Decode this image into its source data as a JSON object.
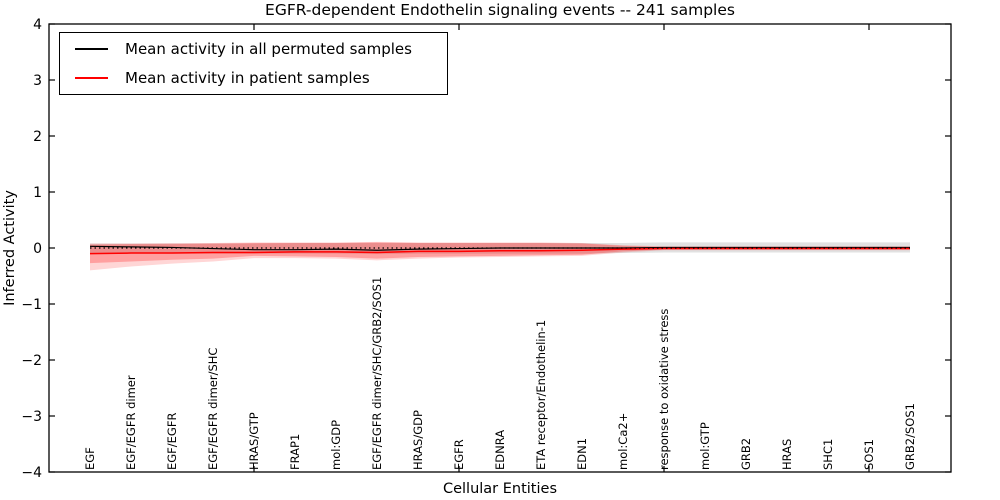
{
  "figure": {
    "title": "EGFR-dependent Endothelin signaling events -- 241 samples",
    "xlabel": "Cellular Entities",
    "ylabel": "Inferred Activity"
  },
  "legend": {
    "entries": [
      {
        "label": "Mean activity in all permuted samples",
        "color": "#000000"
      },
      {
        "label": "Mean activity in patient samples",
        "color": "#ff0000"
      }
    ]
  },
  "chart_data": {
    "type": "line",
    "title": "EGFR-dependent Endothelin signaling events -- 241 samples",
    "xlabel": "Cellular Entities",
    "ylabel": "Inferred Activity",
    "xlim": [
      0,
      22
    ],
    "ylim": [
      -4,
      4
    ],
    "yticks": [
      4,
      3,
      2,
      1,
      0,
      -1,
      -2,
      -3,
      -4
    ],
    "ytick_labels": [
      "4",
      "3",
      "2",
      "1",
      "0",
      "−1",
      "−2",
      "−3",
      "−4"
    ],
    "xticks": [
      5,
      10,
      15,
      20
    ],
    "grid": false,
    "legend_position": "upper left",
    "categories": [
      "EGF",
      "EGF/EGFR dimer",
      "EGF/EGFR",
      "EGF/EGFR dimer/SHC",
      "HRAS/GTP",
      "FRAP1",
      "mol:GDP",
      "EGF/EGFR dimer/SHC/GRB2/SOS1",
      "HRAS/GDP",
      "EGFR",
      "EDNRA",
      "ETA receptor/Endothelin-1",
      "EDN1",
      "mol:Ca2+",
      "response to oxidative stress",
      "mol:GTP",
      "GRB2",
      "HRAS",
      "SHC1",
      "SOS1",
      "GRB2/SOS1"
    ],
    "x": [
      1,
      2,
      3,
      4,
      5,
      6,
      7,
      8,
      9,
      10,
      11,
      12,
      13,
      14,
      15,
      16,
      17,
      18,
      19,
      20,
      21
    ],
    "series": [
      {
        "name": "Mean activity in all permuted samples",
        "color": "#000000",
        "style": "solid",
        "values": [
          0.03,
          0.02,
          0.01,
          -0.01,
          -0.03,
          -0.03,
          -0.02,
          -0.04,
          -0.02,
          -0.01,
          0,
          0,
          0,
          0,
          0.01,
          0.01,
          0.01,
          0.01,
          0.01,
          0.01,
          0.01
        ]
      },
      {
        "name": "Mean activity in patient samples",
        "color": "#ff0000",
        "style": "solid",
        "values": [
          -0.1,
          -0.09,
          -0.09,
          -0.08,
          -0.08,
          -0.07,
          -0.07,
          -0.08,
          -0.06,
          -0.06,
          -0.05,
          -0.05,
          -0.04,
          -0.02,
          -0.01,
          -0.01,
          -0.01,
          -0.01,
          -0.01,
          -0.01,
          -0.01
        ]
      }
    ],
    "bands": [
      {
        "name": "permuted-std",
        "color": "#c9c9c9",
        "opacity": 0.55,
        "upper": [
          0.08,
          0.08,
          0.08,
          0.08,
          0.08,
          0.09,
          0.09,
          0.09,
          0.09,
          0.09,
          0.09,
          0.09,
          0.09,
          0.09,
          0.1,
          0.1,
          0.1,
          0.1,
          0.1,
          0.1,
          0.1
        ],
        "lower": [
          -0.09,
          -0.09,
          -0.1,
          -0.1,
          -0.1,
          -0.1,
          -0.1,
          -0.11,
          -0.1,
          -0.1,
          -0.1,
          -0.1,
          -0.1,
          -0.09,
          -0.08,
          -0.08,
          -0.08,
          -0.08,
          -0.08,
          -0.08,
          -0.08
        ]
      },
      {
        "name": "patient-std-outer",
        "color": "#ff0000",
        "opacity": 0.16,
        "upper": [
          0.08,
          0.08,
          0.09,
          0.09,
          0.1,
          0.1,
          0.1,
          0.11,
          0.1,
          0.1,
          0.1,
          0.1,
          0.09,
          0.05,
          0.03,
          0.03,
          0.03,
          0.03,
          0.03,
          0.03,
          0.03
        ],
        "lower": [
          -0.4,
          -0.33,
          -0.28,
          -0.24,
          -0.18,
          -0.18,
          -0.19,
          -0.22,
          -0.19,
          -0.17,
          -0.16,
          -0.15,
          -0.14,
          -0.08,
          -0.04,
          -0.04,
          -0.04,
          -0.04,
          -0.04,
          -0.04,
          -0.04
        ]
      },
      {
        "name": "patient-std-inner",
        "color": "#ff0000",
        "opacity": 0.25,
        "upper": [
          0.06,
          0.07,
          0.07,
          0.08,
          0.09,
          0.09,
          0.09,
          0.1,
          0.09,
          0.09,
          0.09,
          0.09,
          0.08,
          0.04,
          0.02,
          0.02,
          0.02,
          0.02,
          0.02,
          0.02,
          0.02
        ],
        "lower": [
          -0.27,
          -0.24,
          -0.21,
          -0.19,
          -0.14,
          -0.15,
          -0.16,
          -0.19,
          -0.16,
          -0.15,
          -0.14,
          -0.13,
          -0.12,
          -0.06,
          -0.03,
          -0.03,
          -0.03,
          -0.03,
          -0.03,
          -0.03,
          -0.03
        ]
      }
    ],
    "zero_line": {
      "y": 0,
      "color": "#000000",
      "style": "dotted"
    }
  }
}
